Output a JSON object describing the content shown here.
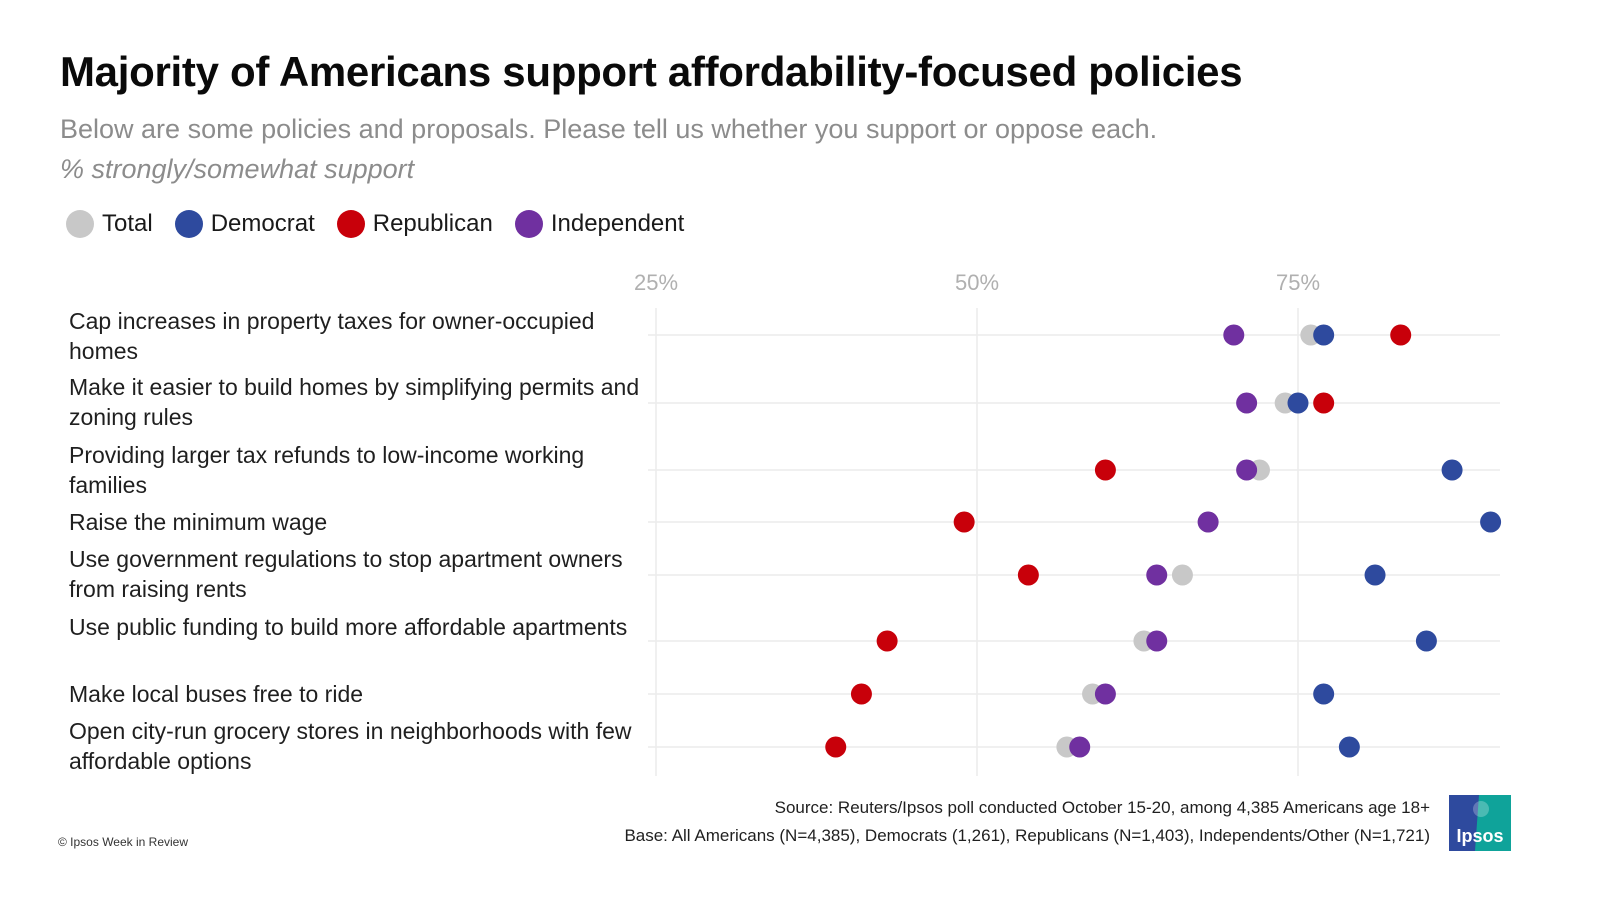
{
  "title": "Majority of Americans support affordability-focused policies",
  "subtitle": "Below are some policies and proposals. Please tell us whether you support or oppose each.",
  "subtitle2": "% strongly/somewhat support",
  "legend": [
    {
      "name": "Total",
      "color": "#c8c8c8"
    },
    {
      "name": "Democrat",
      "color": "#2e4a9e"
    },
    {
      "name": "Republican",
      "color": "#c8000a"
    },
    {
      "name": "Independent",
      "color": "#7030a0"
    }
  ],
  "footer": {
    "source": "Source: Reuters/Ipsos poll conducted October 15-20, among 4,385 Americans age 18+",
    "base": "Base:  All Americans (N=4,385), Democrats (1,261), Republicans (N=1,403), Independents/Other (N=1,721)",
    "copyright": "© Ipsos Week in Review",
    "logo_text": "Ipsos",
    "logo_colors": {
      "left": "#2e4a9e",
      "right": "#0fa39a"
    }
  },
  "chart_data": {
    "type": "scatter",
    "subtype": "dot-plot",
    "title": "Majority of Americans support affordability-focused policies",
    "xlabel": "% strongly/somewhat support",
    "ylabel": "",
    "xlim": [
      25,
      91
    ],
    "x_ticks": [
      25,
      50,
      75
    ],
    "x_tick_labels": [
      "25%",
      "50%",
      "75%"
    ],
    "grid": true,
    "legend_position": "top-left",
    "categories": [
      "Cap increases in property taxes for owner-occupied homes",
      "Make it easier to build homes by simplifying permits and zoning rules",
      "Providing larger tax refunds to low-income working families",
      "Raise the minimum wage",
      "Use government regulations to stop apartment owners from raising rents",
      "Use public funding to build more affordable apartments",
      "Make local buses free to ride",
      "Open city-run grocery stores in neighborhoods with few affordable options"
    ],
    "series": [
      {
        "name": "Total",
        "color": "#c8c8c8",
        "values": [
          76,
          74,
          72,
          68,
          66,
          63,
          59,
          57
        ]
      },
      {
        "name": "Democrat",
        "color": "#2e4a9e",
        "values": [
          77,
          75,
          87,
          90,
          81,
          85,
          77,
          79
        ]
      },
      {
        "name": "Republican",
        "color": "#c8000a",
        "values": [
          83,
          77,
          60,
          49,
          54,
          43,
          41,
          39
        ]
      },
      {
        "name": "Independent",
        "color": "#7030a0",
        "values": [
          70,
          71,
          71,
          68,
          64,
          64,
          60,
          58
        ]
      }
    ]
  }
}
